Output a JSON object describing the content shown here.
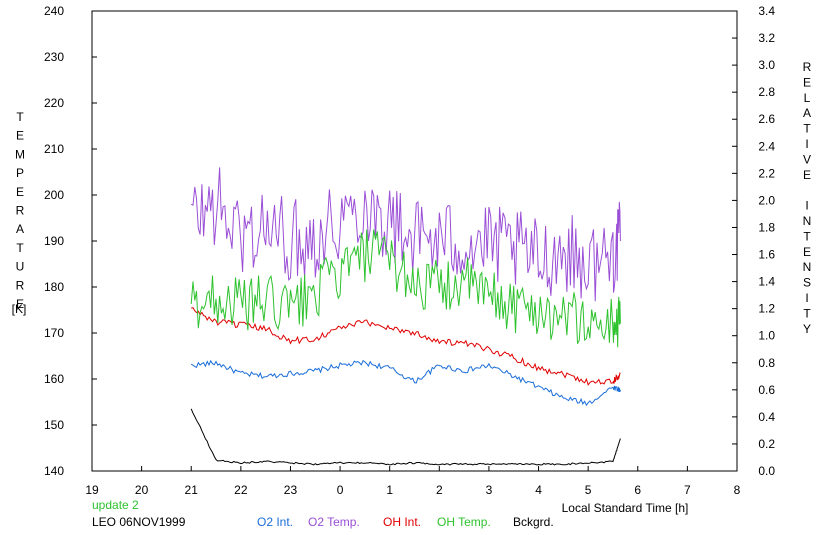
{
  "chart_data": {
    "type": "line",
    "left_axis": {
      "label_letters": [
        "T",
        "E",
        "M",
        "P",
        "E",
        "R",
        "A",
        "T",
        "U",
        "R",
        "E"
      ],
      "unit": "[K]",
      "ylim": [
        140,
        240
      ],
      "ticks": [
        "140",
        "150",
        "160",
        "170",
        "180",
        "190",
        "200",
        "210",
        "220",
        "230",
        "240"
      ]
    },
    "right_axis": {
      "label_letters": [
        "R",
        "E",
        "L",
        "A",
        "T",
        "I",
        "V",
        "E",
        "",
        "I",
        "N",
        "T",
        "E",
        "N",
        "S",
        "I",
        "T",
        "Y"
      ],
      "ylim": [
        0.0,
        3.4
      ],
      "ticks": [
        "0.0",
        "0.2",
        "0.4",
        "0.6",
        "0.8",
        "1.0",
        "1.2",
        "1.4",
        "1.6",
        "1.8",
        "2.0",
        "2.2",
        "2.4",
        "2.6",
        "2.8",
        "3.0",
        "3.2",
        "3.4"
      ]
    },
    "x_axis": {
      "label": "Local Standard Time [h]",
      "ticks": [
        "19",
        "20",
        "21",
        "22",
        "23",
        "0",
        "1",
        "2",
        "3",
        "4",
        "5",
        "6",
        "7",
        "8"
      ]
    },
    "grid": false,
    "x_hours": [
      21.0,
      21.5,
      22.0,
      22.5,
      23.0,
      23.5,
      0.0,
      0.5,
      1.0,
      1.5,
      2.0,
      2.5,
      3.0,
      3.5,
      4.0,
      4.5,
      5.0,
      5.5,
      5.65
    ],
    "series": [
      {
        "name": "O2 Int.",
        "axis": "right",
        "color": "#1a6ed8",
        "values": [
          0.78,
          0.8,
          0.72,
          0.7,
          0.72,
          0.74,
          0.78,
          0.8,
          0.76,
          0.66,
          0.78,
          0.74,
          0.78,
          0.7,
          0.62,
          0.54,
          0.5,
          0.62,
          0.6
        ]
      },
      {
        "name": "O2 Temp.",
        "axis": "left",
        "color": "#9a4fd6",
        "values": [
          195,
          198,
          191,
          193,
          190,
          191,
          195,
          198,
          194,
          191,
          190,
          190,
          189,
          188,
          186,
          188,
          185,
          187,
          190
        ]
      },
      {
        "name": "OH Int.",
        "axis": "right",
        "color": "#e00000",
        "values": [
          1.2,
          1.1,
          1.08,
          1.05,
          0.96,
          0.98,
          1.06,
          1.1,
          1.06,
          1.02,
          0.96,
          0.94,
          0.9,
          0.84,
          0.76,
          0.72,
          0.66,
          0.66,
          0.72
        ]
      },
      {
        "name": "OH Temp.",
        "axis": "left",
        "color": "#2ec22e",
        "values": [
          176,
          178,
          176,
          177,
          175,
          179,
          183,
          187,
          186,
          181,
          180,
          181,
          178,
          176,
          175,
          174,
          172,
          172,
          172
        ]
      },
      {
        "name": "Bckgrd.",
        "axis": "right",
        "color": "#000000",
        "values": [
          0.46,
          0.08,
          0.06,
          0.07,
          0.06,
          0.05,
          0.06,
          0.06,
          0.05,
          0.06,
          0.05,
          0.05,
          0.05,
          0.05,
          0.05,
          0.05,
          0.06,
          0.07,
          0.24
        ]
      }
    ],
    "annotations": {
      "status": "update 2",
      "station": "LEO 06NOV1999"
    }
  }
}
